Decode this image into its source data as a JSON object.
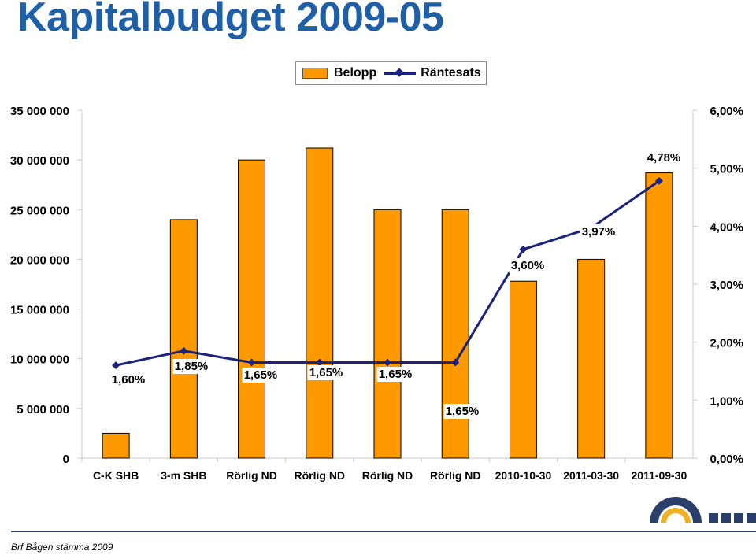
{
  "title": "Kapitalbudget 2009-05",
  "footer": "Brf Bågen stämma 2009",
  "colors": {
    "bar": "#ff9900",
    "line": "#1a237e",
    "title": "#1f5fa8"
  },
  "chart_data": {
    "type": "bar",
    "title": "",
    "categories": [
      "C-K SHB",
      "3-m SHB",
      "Rörlig ND",
      "Rörlig ND",
      "Rörlig ND",
      "Rörlig ND",
      "2010-10-30",
      "2011-03-30",
      "2011-09-30"
    ],
    "series": [
      {
        "name": "Belopp",
        "axis": "left",
        "type": "bar",
        "values": [
          2500000,
          24000000,
          30000000,
          31200000,
          25000000,
          25000000,
          17800000,
          20000000,
          28700000
        ]
      },
      {
        "name": "Räntesats",
        "axis": "right",
        "type": "line",
        "values": [
          1.6,
          1.85,
          1.65,
          1.65,
          1.65,
          1.65,
          3.6,
          3.97,
          4.78
        ],
        "labels": [
          "1,60%",
          "1,85%",
          "1,65%",
          "1,65%",
          "1,65%",
          "1,65%",
          "3,60%",
          "3,97%",
          "4,78%"
        ]
      }
    ],
    "left_axis": {
      "ylim": [
        0,
        35000000
      ],
      "ticks": [
        "0",
        "5 000 000",
        "10 000 000",
        "15 000 000",
        "20 000 000",
        "25 000 000",
        "30 000 000",
        "35 000 000"
      ]
    },
    "right_axis": {
      "ylim": [
        0,
        6
      ],
      "ticks": [
        "0,00%",
        "1,00%",
        "2,00%",
        "3,00%",
        "4,00%",
        "5,00%",
        "6,00%"
      ]
    },
    "legend": [
      "Belopp",
      "Räntesats"
    ],
    "legend_position": "top-center",
    "grid": false
  }
}
